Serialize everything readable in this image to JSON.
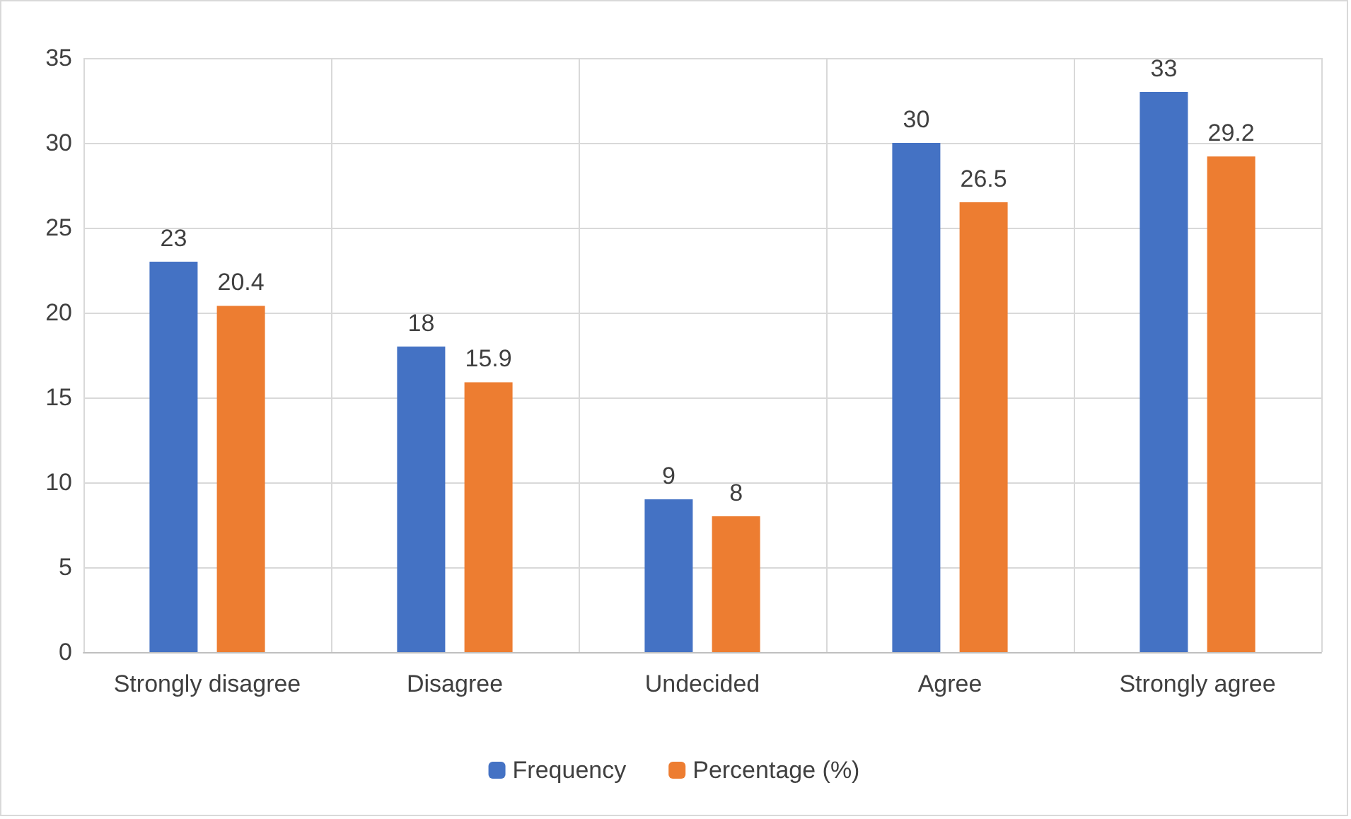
{
  "chart_data": {
    "type": "bar",
    "categories": [
      "Strongly disagree",
      "Disagree",
      "Undecided",
      "Agree",
      "Strongly agree"
    ],
    "series": [
      {
        "name": "Frequency",
        "color": "#4472c4",
        "values": [
          23,
          18,
          9,
          30,
          33
        ]
      },
      {
        "name": "Percentage (%)",
        "color": "#ed7d31",
        "values": [
          20.4,
          15.9,
          8,
          26.5,
          29.2
        ]
      }
    ],
    "ylim": [
      0,
      35
    ],
    "yticks": [
      0,
      5,
      10,
      15,
      20,
      25,
      30,
      35
    ],
    "grid": true,
    "legend": "bottom",
    "data_labels": true
  }
}
